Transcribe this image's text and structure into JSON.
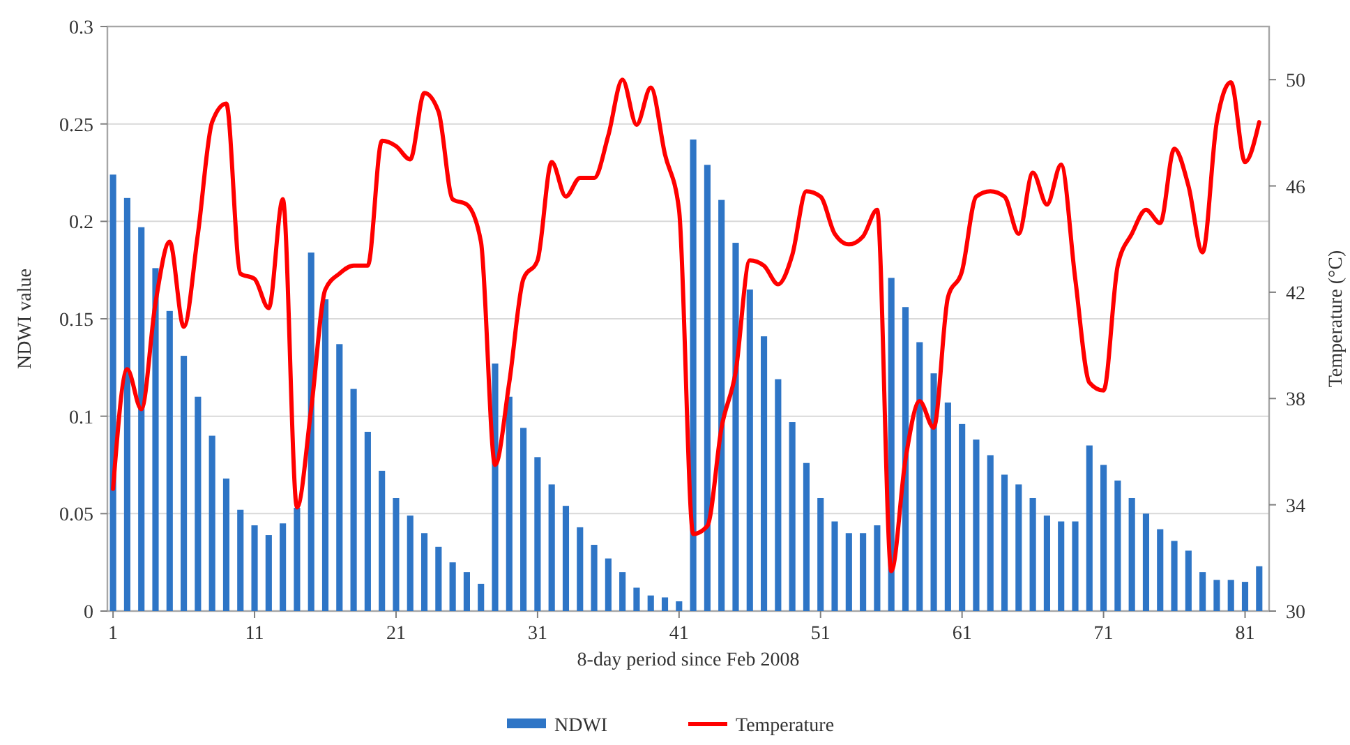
{
  "chart_data": {
    "type": "bar",
    "xlabel": "8-day period since Feb 2008",
    "ylabel": "NDWI value",
    "y2label": "Temperature (°C)",
    "x": [
      1,
      2,
      3,
      4,
      5,
      6,
      7,
      8,
      9,
      10,
      11,
      12,
      13,
      14,
      15,
      16,
      17,
      18,
      19,
      20,
      21,
      22,
      23,
      24,
      25,
      26,
      27,
      28,
      29,
      30,
      31,
      32,
      33,
      34,
      35,
      36,
      37,
      38,
      39,
      40,
      41,
      42,
      43,
      44,
      45,
      46,
      47,
      48,
      49,
      50,
      51,
      52,
      53,
      54,
      55,
      56,
      57,
      58,
      59,
      60,
      61,
      62,
      63,
      64,
      65,
      66,
      67,
      68,
      69,
      70,
      71,
      72,
      73,
      74,
      75,
      76,
      77,
      78,
      79,
      80,
      81,
      82
    ],
    "xlim": [
      0.6,
      82.7
    ],
    "xticks": [
      1,
      11,
      21,
      31,
      41,
      51,
      61,
      71,
      81
    ],
    "ylim": [
      0,
      0.3
    ],
    "yticks": [
      0,
      0.05,
      0.1,
      0.15,
      0.2,
      0.25,
      0.3
    ],
    "y2lim": [
      30,
      52
    ],
    "y2ticks": [
      30,
      34,
      38,
      42,
      46,
      50
    ],
    "grid": "y",
    "legend": "bottom",
    "series": [
      {
        "name": "NDWI",
        "color": "#2e75c6",
        "values": [
          0.224,
          0.212,
          0.197,
          0.176,
          0.154,
          0.131,
          0.11,
          0.09,
          0.068,
          0.052,
          0.044,
          0.039,
          0.045,
          0.053,
          0.184,
          0.16,
          0.137,
          0.114,
          0.092,
          0.072,
          0.058,
          0.049,
          0.04,
          0.033,
          0.025,
          0.02,
          0.014,
          0.127,
          0.11,
          0.094,
          0.079,
          0.065,
          0.054,
          0.043,
          0.034,
          0.027,
          0.02,
          0.012,
          0.008,
          0.007,
          0.005,
          0.242,
          0.229,
          0.211,
          0.189,
          0.165,
          0.141,
          0.119,
          0.097,
          0.076,
          0.058,
          0.046,
          0.04,
          0.04,
          0.044,
          0.171,
          0.156,
          0.138,
          0.122,
          0.107,
          0.096,
          0.088,
          0.08,
          0.07,
          0.065,
          0.058,
          0.049,
          0.046,
          0.046,
          0.085,
          0.075,
          0.067,
          0.058,
          0.05,
          0.042,
          0.036,
          0.031,
          0.02,
          0.016,
          0.016,
          0.015,
          0.023
        ]
      },
      {
        "name": "Temperature",
        "type": "line",
        "axis": "y2",
        "color": "#ff0000",
        "values": [
          34.6,
          39.1,
          37.6,
          41.6,
          43.9,
          40.7,
          44.2,
          48.4,
          49.1,
          42.7,
          42.5,
          41.4,
          45.5,
          33.9,
          37.6,
          42.1,
          42.7,
          43.0,
          43.0,
          47.7,
          47.5,
          47.0,
          49.5,
          48.8,
          45.5,
          45.3,
          43.9,
          35.5,
          38.6,
          42.5,
          43.2,
          46.9,
          45.6,
          46.3,
          46.3,
          47.9,
          50.0,
          48.3,
          49.7,
          47.2,
          45.1,
          32.9,
          33.2,
          36.9,
          39.0,
          43.2,
          43.0,
          42.3,
          43.4,
          45.8,
          45.6,
          44.2,
          43.8,
          44.1,
          45.1,
          31.5,
          35.7,
          37.9,
          36.9,
          41.8,
          42.8,
          45.6,
          45.8,
          45.6,
          44.2,
          46.5,
          45.3,
          46.8,
          42.5,
          38.6,
          38.3,
          43.0,
          44.2,
          45.1,
          44.6,
          47.4,
          46.0,
          43.5,
          48.4,
          49.9,
          46.9,
          48.4
        ]
      }
    ]
  }
}
